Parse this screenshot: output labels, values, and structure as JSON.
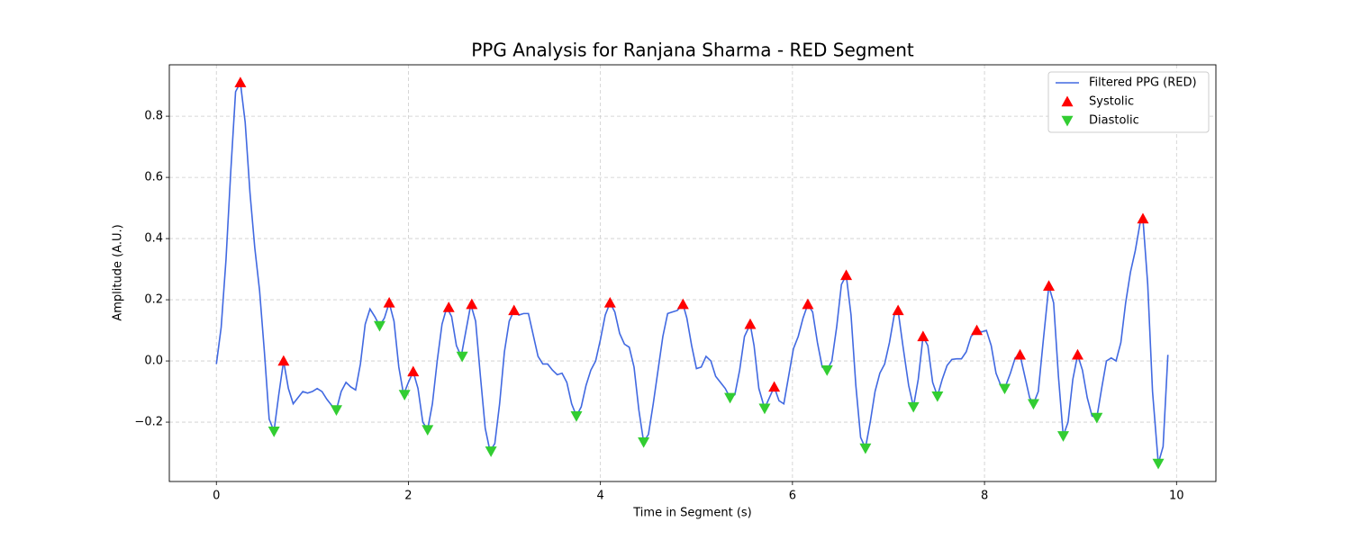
{
  "chart_data": {
    "type": "line",
    "title": "PPG Analysis for Ranjana Sharma - RED Segment",
    "xlabel": "Time in Segment (s)",
    "ylabel": "Amplitude (A.U.)",
    "xlim": [
      -0.49,
      10.41
    ],
    "ylim": [
      -0.394,
      0.968
    ],
    "xticks": [
      0,
      2,
      4,
      6,
      8,
      10
    ],
    "yticks": [
      {
        "value": -0.2,
        "label": "−0.2"
      },
      {
        "value": 0,
        "label": "0.0"
      },
      0.2,
      0.4,
      0.6,
      0.8
    ],
    "grid": true,
    "legend": "upper right",
    "series": [
      {
        "name": "Filtered PPG (RED)",
        "color": "#4169e1",
        "style": "line",
        "x": [
          0,
          0.05,
          0.1,
          0.15,
          0.2,
          0.25,
          0.3,
          0.35,
          0.4,
          0.45,
          0.5,
          0.55,
          0.6,
          0.65,
          0.7,
          0.75,
          0.8,
          0.85,
          0.9,
          0.95,
          1.0,
          1.05,
          1.1,
          1.15,
          1.2,
          1.25,
          1.3,
          1.35,
          1.4,
          1.45,
          1.5,
          1.55,
          1.6,
          1.65,
          1.7,
          1.75,
          1.8,
          1.85,
          1.9,
          1.95,
          2.0,
          2.05,
          2.1,
          2.15,
          2.2,
          2.25,
          2.3,
          2.35,
          2.4,
          2.45,
          2.5,
          2.55,
          2.6,
          2.65,
          2.7,
          2.75,
          2.8,
          2.85,
          2.9,
          2.95,
          3.0,
          3.05,
          3.1,
          3.15,
          3.2,
          3.25,
          3.3,
          3.35,
          3.4,
          3.45,
          3.5,
          3.55,
          3.6,
          3.65,
          3.7,
          3.75,
          3.8,
          3.85,
          3.9,
          3.95,
          4.0,
          4.05,
          4.1,
          4.15,
          4.2,
          4.25,
          4.3,
          4.35,
          4.4,
          4.45,
          4.5,
          4.55,
          4.6,
          4.65,
          4.7,
          4.75,
          4.8,
          4.86,
          4.9,
          4.95,
          5.0,
          5.05,
          5.1,
          5.15,
          5.2,
          5.25,
          5.3,
          5.35,
          5.4,
          5.45,
          5.5,
          5.56,
          5.6,
          5.65,
          5.71,
          5.76,
          5.81,
          5.86,
          5.91,
          5.96,
          6.01,
          6.06,
          6.11,
          6.16,
          6.21,
          6.26,
          6.31,
          6.36,
          6.41,
          6.46,
          6.51,
          6.56,
          6.61,
          6.66,
          6.71,
          6.76,
          6.81,
          6.86,
          6.91,
          6.96,
          7.01,
          7.06,
          7.1,
          7.15,
          7.21,
          7.26,
          7.31,
          7.36,
          7.41,
          7.46,
          7.51,
          7.56,
          7.61,
          7.66,
          7.71,
          7.76,
          7.81,
          7.86,
          7.92,
          7.97,
          8.02,
          8.07,
          8.12,
          8.17,
          8.21,
          8.27,
          8.32,
          8.37,
          8.42,
          8.47,
          8.51,
          8.56,
          8.61,
          8.67,
          8.72,
          8.77,
          8.82,
          8.87,
          8.92,
          8.97,
          9.02,
          9.07,
          9.12,
          9.17,
          9.22,
          9.27,
          9.32,
          9.37,
          9.42,
          9.47,
          9.52,
          9.57,
          9.62,
          9.65,
          9.7,
          9.75,
          9.81,
          9.86,
          9.91
        ],
        "values": [
          -0.01,
          0.11,
          0.33,
          0.62,
          0.88,
          0.91,
          0.78,
          0.55,
          0.37,
          0.23,
          0.03,
          -0.19,
          -0.23,
          -0.11,
          0.0,
          -0.09,
          -0.14,
          -0.12,
          -0.1,
          -0.105,
          -0.1,
          -0.09,
          -0.1,
          -0.125,
          -0.145,
          -0.16,
          -0.1,
          -0.07,
          -0.085,
          -0.095,
          -0.01,
          0.12,
          0.17,
          0.145,
          0.115,
          0.14,
          0.19,
          0.13,
          -0.02,
          -0.11,
          -0.07,
          -0.035,
          -0.09,
          -0.2,
          -0.225,
          -0.14,
          0.0,
          0.12,
          0.175,
          0.145,
          0.05,
          0.015,
          0.1,
          0.185,
          0.13,
          -0.05,
          -0.22,
          -0.295,
          -0.27,
          -0.14,
          0.03,
          0.13,
          0.165,
          0.15,
          0.155,
          0.155,
          0.085,
          0.015,
          -0.01,
          -0.01,
          -0.03,
          -0.045,
          -0.04,
          -0.07,
          -0.14,
          -0.18,
          -0.15,
          -0.08,
          -0.03,
          0.0,
          0.07,
          0.15,
          0.19,
          0.16,
          0.09,
          0.055,
          0.045,
          -0.02,
          -0.16,
          -0.265,
          -0.24,
          -0.14,
          -0.03,
          0.08,
          0.155,
          0.16,
          0.165,
          0.185,
          0.14,
          0.05,
          -0.025,
          -0.02,
          0.015,
          0.0,
          -0.05,
          -0.07,
          -0.09,
          -0.12,
          -0.11,
          -0.03,
          0.08,
          0.12,
          0.05,
          -0.09,
          -0.155,
          -0.12,
          -0.085,
          -0.13,
          -0.14,
          -0.05,
          0.04,
          0.08,
          0.14,
          0.185,
          0.16,
          0.06,
          -0.02,
          -0.03,
          0.0,
          0.11,
          0.25,
          0.28,
          0.15,
          -0.08,
          -0.25,
          -0.285,
          -0.2,
          -0.1,
          -0.04,
          -0.01,
          0.06,
          0.15,
          0.165,
          0.05,
          -0.08,
          -0.15,
          -0.06,
          0.08,
          0.05,
          -0.07,
          -0.115,
          -0.06,
          -0.015,
          0.005,
          0.007,
          0.007,
          0.03,
          0.08,
          0.1,
          0.095,
          0.1,
          0.05,
          -0.04,
          -0.08,
          -0.09,
          -0.04,
          0.01,
          0.02,
          -0.05,
          -0.12,
          -0.14,
          -0.1,
          0.06,
          0.245,
          0.19,
          -0.05,
          -0.245,
          -0.2,
          -0.06,
          0.02,
          -0.03,
          -0.12,
          -0.18,
          -0.185,
          -0.09,
          0.0,
          0.01,
          0.0,
          0.06,
          0.19,
          0.29,
          0.36,
          0.45,
          0.465,
          0.25,
          -0.1,
          -0.335,
          -0.28,
          0.02
        ]
      },
      {
        "name": "Systolic",
        "color": "#ff0000",
        "style": "triangle-up",
        "x": [
          0.25,
          0.7,
          1.8,
          2.05,
          2.42,
          2.66,
          3.1,
          4.1,
          4.86,
          5.56,
          5.81,
          6.16,
          6.56,
          7.1,
          7.36,
          7.92,
          8.37,
          8.67,
          8.97,
          9.65
        ],
        "values": [
          0.91,
          0.0,
          0.19,
          -0.035,
          0.175,
          0.185,
          0.165,
          0.19,
          0.185,
          0.12,
          -0.085,
          0.185,
          0.28,
          0.165,
          0.08,
          0.1,
          0.02,
          0.245,
          0.02,
          0.465
        ]
      },
      {
        "name": "Diastolic",
        "color": "#32cd32",
        "style": "triangle-down",
        "x": [
          0.6,
          1.25,
          1.7,
          1.96,
          2.2,
          2.56,
          2.86,
          3.75,
          4.45,
          5.35,
          5.71,
          6.36,
          6.76,
          7.26,
          7.51,
          8.21,
          8.51,
          8.82,
          9.17,
          9.81
        ],
        "values": [
          -0.23,
          -0.16,
          0.115,
          -0.11,
          -0.225,
          0.015,
          -0.295,
          -0.18,
          -0.265,
          -0.12,
          -0.155,
          -0.03,
          -0.285,
          -0.15,
          -0.115,
          -0.09,
          -0.14,
          -0.245,
          -0.185,
          -0.335
        ]
      }
    ]
  }
}
